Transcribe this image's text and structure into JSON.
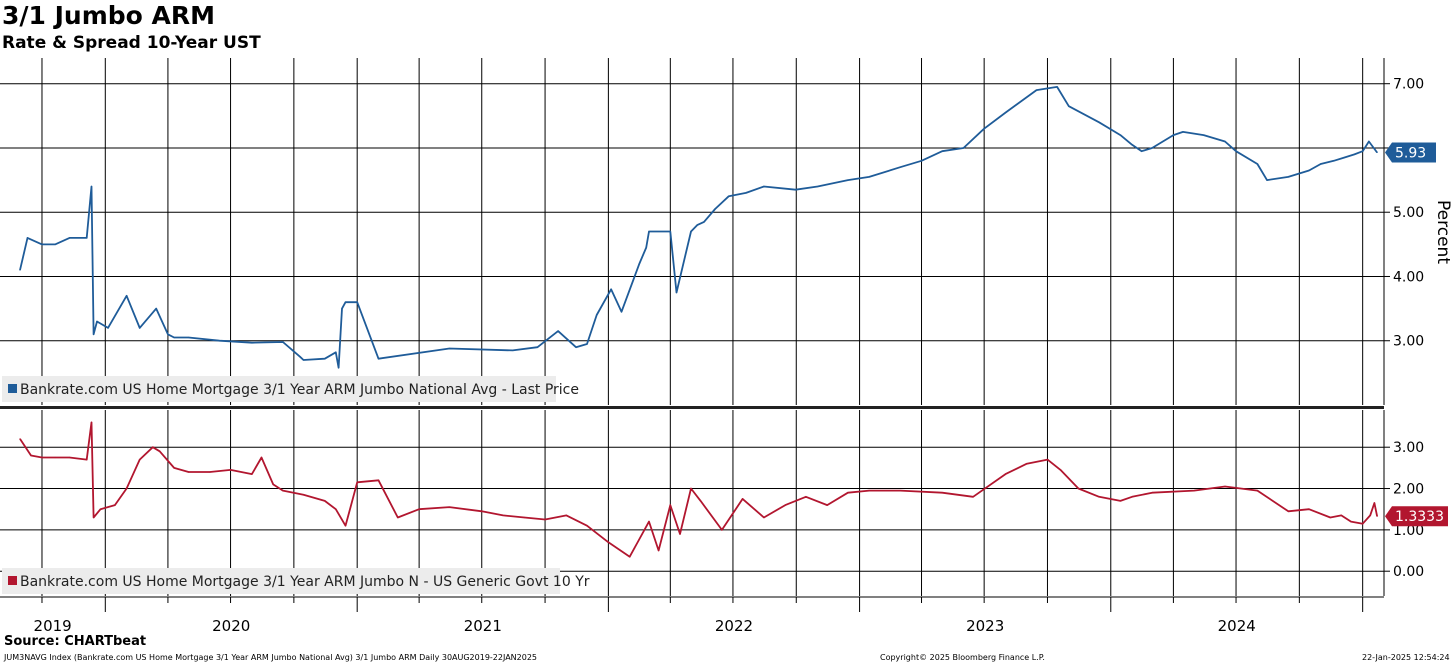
{
  "header": {
    "title": "3/1 Jumbo ARM",
    "subtitle": "Rate & Spread 10-Year UST"
  },
  "footer": {
    "source": "Source: CHARTbeat",
    "description": "JUM3NAVG Index (Bankrate.com US Home Mortgage 3/1 Year ARM Jumbo National Avg) 3/1 Jumbo ARM  Daily 30AUG2019-22JAN2025",
    "copyright": "Copyright© 2025 Bloomberg Finance L.P.",
    "timestamp": "22-Jan-2025 12:54:24"
  },
  "colors": {
    "rate": "#1f5c99",
    "spread": "#b2162f",
    "grid": "#000000"
  },
  "chart_data": [
    {
      "type": "line",
      "title": "3/1 Jumbo ARM",
      "ylabel": "Percent",
      "ylim": [
        2.0,
        7.4
      ],
      "yticks": [
        3,
        4,
        5,
        6,
        7
      ],
      "ytick_labels": [
        "3.00",
        "4.00",
        "5.00",
        "",
        "7.00"
      ],
      "last_value_label": "5.93",
      "series": [
        {
          "name": "Bankrate.com US Home Mortgage 3/1 Year ARM Jumbo National Avg - Last Price",
          "x": [
            "2019-08-30",
            "2019-09-10",
            "2019-10-01",
            "2019-10-20",
            "2019-11-10",
            "2019-12-05",
            "2019-12-12",
            "2019-12-15",
            "2019-12-20",
            "2020-01-05",
            "2020-02-01",
            "2020-02-20",
            "2020-03-15",
            "2020-04-01",
            "2020-04-10",
            "2020-05-01",
            "2020-06-15",
            "2020-08-01",
            "2020-09-15",
            "2020-10-10",
            "2020-10-15",
            "2020-11-15",
            "2020-12-01",
            "2020-12-05",
            "2020-12-10",
            "2020-12-15",
            "2021-01-01",
            "2021-02-01",
            "2021-05-15",
            "2021-08-15",
            "2021-09-20",
            "2021-10-20",
            "2021-11-15",
            "2021-12-01",
            "2021-12-15",
            "2022-01-05",
            "2022-01-20",
            "2022-02-15",
            "2022-02-25",
            "2022-03-01",
            "2022-04-01",
            "2022-04-10",
            "2022-05-01",
            "2022-05-10",
            "2022-05-20",
            "2022-06-05",
            "2022-06-25",
            "2022-07-20",
            "2022-08-15",
            "2022-09-30",
            "2022-11-01",
            "2022-12-15",
            "2023-01-15",
            "2023-03-01",
            "2023-04-01",
            "2023-05-01",
            "2023-06-01",
            "2023-07-01",
            "2023-08-01",
            "2023-09-15",
            "2023-10-15",
            "2023-11-01",
            "2023-12-15",
            "2024-01-15",
            "2024-02-01",
            "2024-02-15",
            "2024-03-01",
            "2024-04-01",
            "2024-04-15",
            "2024-05-15",
            "2024-06-15",
            "2024-07-01",
            "2024-08-01",
            "2024-08-15",
            "2024-09-15",
            "2024-10-15",
            "2024-11-01",
            "2024-11-20",
            "2024-12-05",
            "2024-12-20",
            "2025-01-01",
            "2025-01-10",
            "2025-01-22"
          ],
          "y": [
            4.1,
            4.6,
            4.5,
            4.5,
            4.6,
            4.6,
            5.4,
            3.1,
            3.3,
            3.2,
            3.7,
            3.2,
            3.5,
            3.1,
            3.05,
            3.05,
            3.0,
            2.97,
            2.98,
            2.75,
            2.7,
            2.72,
            2.82,
            2.58,
            3.5,
            3.6,
            3.6,
            2.72,
            2.88,
            2.85,
            2.9,
            3.15,
            2.9,
            2.95,
            3.4,
            3.8,
            3.45,
            4.2,
            4.45,
            4.7,
            4.7,
            3.75,
            4.7,
            4.8,
            4.85,
            5.05,
            5.25,
            5.3,
            5.4,
            5.35,
            5.4,
            5.5,
            5.55,
            5.7,
            5.8,
            5.95,
            6.0,
            6.3,
            6.55,
            6.9,
            6.95,
            6.65,
            6.4,
            6.2,
            6.05,
            5.95,
            6.0,
            6.2,
            6.25,
            6.2,
            6.1,
            5.95,
            5.75,
            5.5,
            5.55,
            5.65,
            5.75,
            5.8,
            5.85,
            5.9,
            5.95,
            6.1,
            5.93
          ]
        }
      ]
    },
    {
      "type": "line",
      "ylim": [
        -0.6,
        3.9
      ],
      "yticks": [
        0,
        1,
        2,
        3
      ],
      "ytick_labels": [
        "0.00",
        "1.00",
        "2.00",
        "3.00"
      ],
      "last_value_label": "1.3333",
      "series": [
        {
          "name": "Bankrate.com US Home Mortgage 3/1 Year ARM Jumbo N - US Generic Govt 10 Yr",
          "x": [
            "2019-08-30",
            "2019-09-15",
            "2019-10-01",
            "2019-10-20",
            "2019-11-10",
            "2019-12-05",
            "2019-12-12",
            "2019-12-15",
            "2019-12-25",
            "2020-01-15",
            "2020-02-01",
            "2020-02-20",
            "2020-03-10",
            "2020-03-20",
            "2020-04-10",
            "2020-05-01",
            "2020-06-01",
            "2020-07-01",
            "2020-08-01",
            "2020-08-15",
            "2020-09-01",
            "2020-09-15",
            "2020-10-15",
            "2020-11-15",
            "2020-12-01",
            "2020-12-15",
            "2020-12-20",
            "2021-01-01",
            "2021-02-01",
            "2021-03-01",
            "2021-04-01",
            "2021-05-15",
            "2021-07-01",
            "2021-08-01",
            "2021-09-01",
            "2021-10-01",
            "2021-11-01",
            "2021-12-01",
            "2022-01-01",
            "2022-02-01",
            "2022-03-01",
            "2022-03-15",
            "2022-04-01",
            "2022-04-15",
            "2022-05-01",
            "2022-05-15",
            "2022-06-15",
            "2022-07-15",
            "2022-08-15",
            "2022-09-15",
            "2022-10-15",
            "2022-11-15",
            "2022-12-15",
            "2023-01-15",
            "2023-03-01",
            "2023-05-01",
            "2023-06-15",
            "2023-08-01",
            "2023-09-01",
            "2023-10-01",
            "2023-10-20",
            "2023-11-15",
            "2023-12-15",
            "2024-01-15",
            "2024-02-01",
            "2024-03-01",
            "2024-05-01",
            "2024-06-15",
            "2024-08-01",
            "2024-09-15",
            "2024-10-15",
            "2024-11-15",
            "2024-12-01",
            "2024-12-15",
            "2025-01-01",
            "2025-01-12",
            "2025-01-18",
            "2025-01-22"
          ],
          "y": [
            3.2,
            2.8,
            2.75,
            2.75,
            2.75,
            2.7,
            3.6,
            1.3,
            1.5,
            1.6,
            2.0,
            2.7,
            3.0,
            2.9,
            2.5,
            2.4,
            2.4,
            2.45,
            2.35,
            2.75,
            2.1,
            1.95,
            1.85,
            1.7,
            1.5,
            1.1,
            1.4,
            2.15,
            2.2,
            1.3,
            1.5,
            1.55,
            1.45,
            1.35,
            1.3,
            1.25,
            1.35,
            1.1,
            0.7,
            0.35,
            1.2,
            0.5,
            1.6,
            0.9,
            2.0,
            1.7,
            1.0,
            1.75,
            1.3,
            1.6,
            1.8,
            1.6,
            1.9,
            1.95,
            1.95,
            1.9,
            1.8,
            2.35,
            2.6,
            2.7,
            2.45,
            2.0,
            1.8,
            1.7,
            1.8,
            1.9,
            1.95,
            2.05,
            1.95,
            1.45,
            1.5,
            1.3,
            1.35,
            1.2,
            1.15,
            1.35,
            1.65,
            1.33
          ]
        }
      ]
    }
  ],
  "xaxis": {
    "year_labels": [
      "2019",
      "2020",
      "2021",
      "2022",
      "2023",
      "2024"
    ]
  }
}
